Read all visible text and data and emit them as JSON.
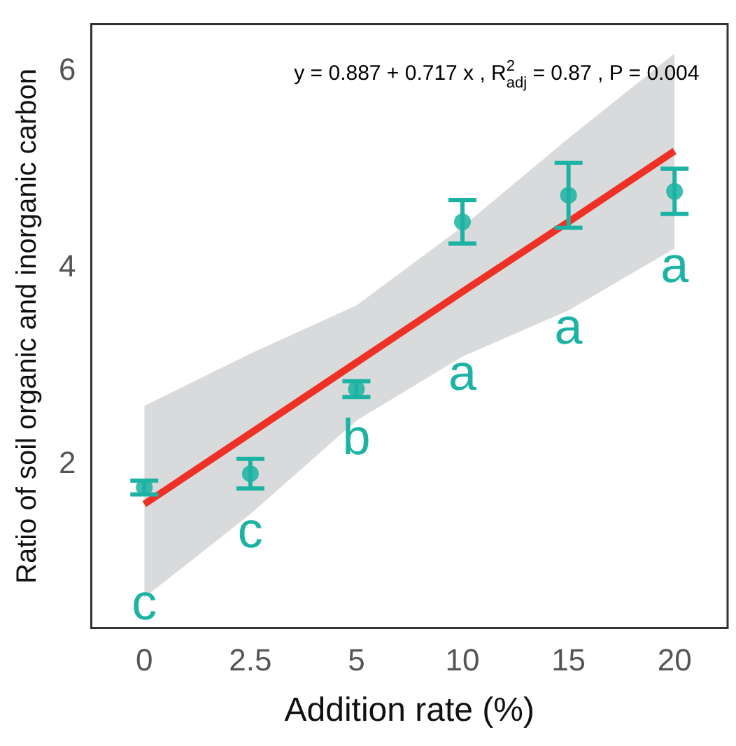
{
  "chart_data": {
    "type": "scatter",
    "xlabel": "Addition rate (%)",
    "ylabel": "Ratio of soil organic and inorganic carbon",
    "categories": [
      "0",
      "2.5",
      "5",
      "10",
      "15",
      "20"
    ],
    "ylim": [
      0.34,
      6.48
    ],
    "yticks": [
      2,
      4,
      6
    ],
    "grid": false,
    "legend": false,
    "series": [
      {
        "type": "line",
        "color": "#ee3124",
        "marker": "none",
        "x": [
          "0",
          "2.5",
          "5",
          "10",
          "15",
          "20"
        ],
        "values": [
          1.6,
          2.32,
          3.04,
          3.76,
          4.47,
          5.19
        ],
        "lower": [
          0.65,
          1.5,
          2.45,
          3.1,
          3.57,
          4.2
        ],
        "upper": [
          2.6,
          3.13,
          3.62,
          4.42,
          5.32,
          6.18
        ]
      },
      {
        "color": "#1db3a4",
        "marker": "circle",
        "x": [
          "0",
          "2.5",
          "5",
          "10",
          "15",
          "20"
        ],
        "values": [
          1.77,
          1.91,
          2.77,
          4.47,
          4.74,
          4.78
        ],
        "errors": [
          0.07,
          0.15,
          0.08,
          0.22,
          0.33,
          0.23
        ]
      }
    ],
    "annotations": [
      "y = 0.887 + 0.717 x , R$^{2}$$_{adj}$ = 0.87 , P = 0.004",
      "c",
      "c",
      "b",
      "a",
      "a",
      "a"
    ]
  }
}
